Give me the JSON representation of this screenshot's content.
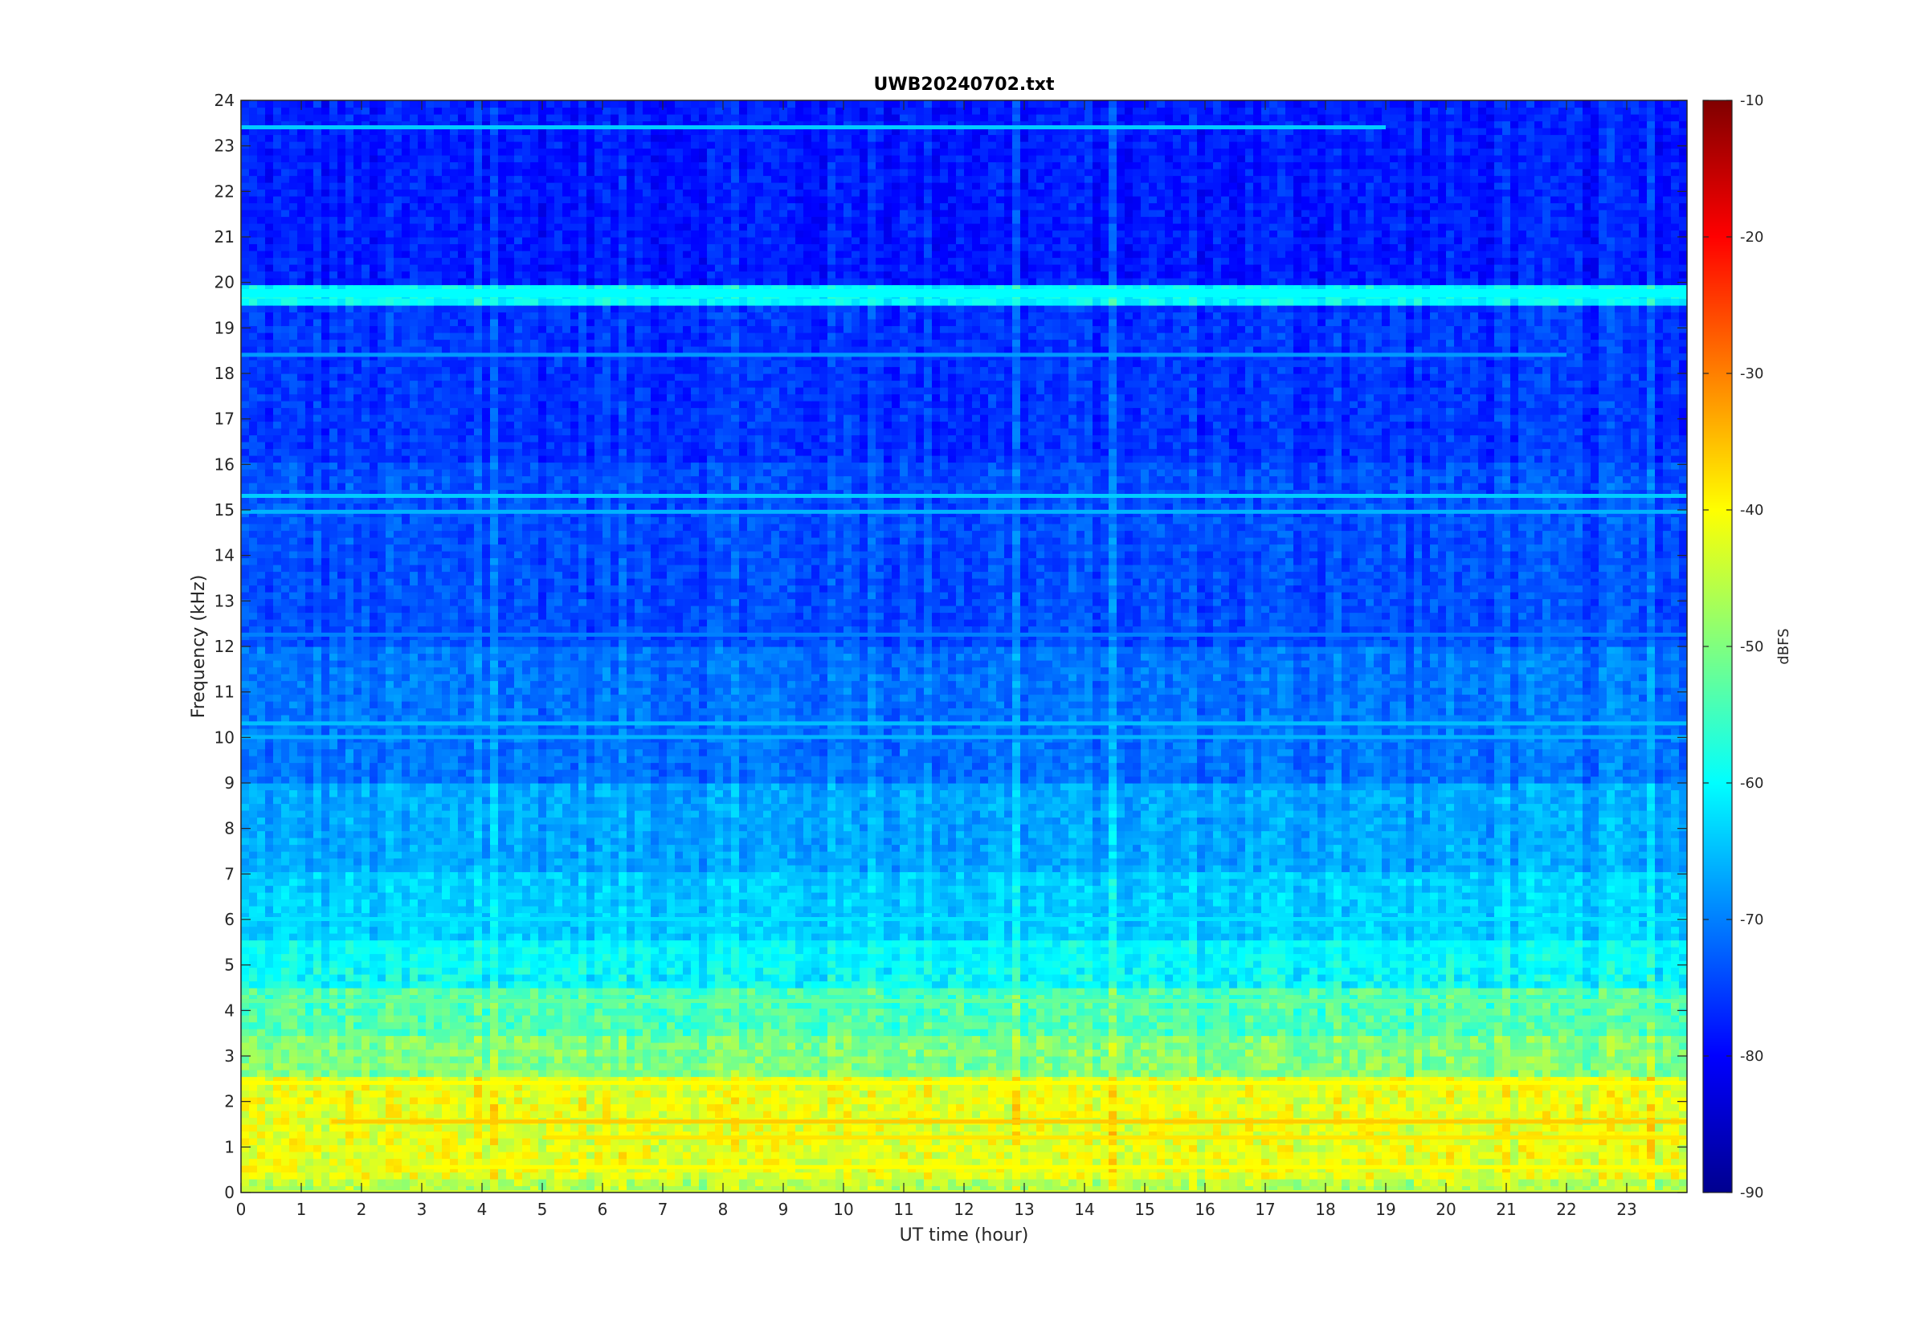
{
  "chart_data": {
    "type": "heatmap",
    "title": "UWB20240702.txt",
    "xlabel": "UT time (hour)",
    "ylabel": "Frequency (kHz)",
    "xlim": [
      0,
      24
    ],
    "ylim": [
      0,
      24
    ],
    "x_ticks": [
      "0",
      "1",
      "2",
      "3",
      "4",
      "5",
      "6",
      "7",
      "8",
      "9",
      "10",
      "11",
      "12",
      "13",
      "14",
      "15",
      "16",
      "17",
      "18",
      "19",
      "20",
      "21",
      "22",
      "23"
    ],
    "y_ticks": [
      "0",
      "1",
      "2",
      "3",
      "4",
      "5",
      "6",
      "7",
      "8",
      "9",
      "10",
      "11",
      "12",
      "13",
      "14",
      "15",
      "16",
      "17",
      "18",
      "19",
      "20",
      "21",
      "22",
      "23",
      "24"
    ],
    "colormap": "jet",
    "colorbar": {
      "label": "dBFS",
      "clim": [
        -90,
        -10
      ],
      "ticks": [
        "-10",
        "-20",
        "-30",
        "-40",
        "-50",
        "-60",
        "-70",
        "-80",
        "-90"
      ]
    },
    "level_profile_dBFS": [
      {
        "freq_khz": [
          0.0,
          0.3
        ],
        "level": -46
      },
      {
        "freq_khz": [
          0.3,
          2.5
        ],
        "level": -42
      },
      {
        "freq_khz": [
          2.5,
          3.5
        ],
        "level": -50
      },
      {
        "freq_khz": [
          3.5,
          4.5
        ],
        "level": -54
      },
      {
        "freq_khz": [
          4.5,
          5.5
        ],
        "level": -60
      },
      {
        "freq_khz": [
          5.5,
          7.0
        ],
        "level": -64
      },
      {
        "freq_khz": [
          7.0,
          9.0
        ],
        "level": -67
      },
      {
        "freq_khz": [
          9.0,
          12.0
        ],
        "level": -71
      },
      {
        "freq_khz": [
          12.0,
          16.0
        ],
        "level": -74
      },
      {
        "freq_khz": [
          16.0,
          19.5
        ],
        "level": -76
      },
      {
        "freq_khz": [
          19.5,
          20.0
        ],
        "level": -60
      },
      {
        "freq_khz": [
          20.0,
          24.0
        ],
        "level": -78
      }
    ],
    "persistent_lines": [
      {
        "freq_khz": 19.8,
        "level": -60,
        "from_hour": 0,
        "to_hour": 24
      },
      {
        "freq_khz": 23.4,
        "level": -64,
        "from_hour": 0,
        "to_hour": 19
      },
      {
        "freq_khz": 15.3,
        "level": -64,
        "from_hour": 0,
        "to_hour": 24
      },
      {
        "freq_khz": 14.95,
        "level": -66,
        "from_hour": 0,
        "to_hour": 24
      },
      {
        "freq_khz": 18.4,
        "level": -68,
        "from_hour": 0,
        "to_hour": 22
      },
      {
        "freq_khz": 12.25,
        "level": -70,
        "from_hour": 0,
        "to_hour": 24
      },
      {
        "freq_khz": 10.3,
        "level": -65,
        "from_hour": 0,
        "to_hour": 24
      },
      {
        "freq_khz": 10.0,
        "level": -66,
        "from_hour": 0,
        "to_hour": 24
      },
      {
        "freq_khz": 6.0,
        "level": -62,
        "from_hour": 0,
        "to_hour": 24
      },
      {
        "freq_khz": 4.2,
        "level": -52,
        "from_hour": 0,
        "to_hour": 24
      },
      {
        "freq_khz": 2.4,
        "level": -40,
        "from_hour": 0,
        "to_hour": 24
      },
      {
        "freq_khz": 1.55,
        "level": -36,
        "from_hour": 1.5,
        "to_hour": 24
      },
      {
        "freq_khz": 1.2,
        "level": -38,
        "from_hour": 5,
        "to_hour": 24
      },
      {
        "freq_khz": 0.55,
        "level": -40,
        "from_hour": 3,
        "to_hour": 24
      },
      {
        "freq_khz": 0.0,
        "level": -44,
        "from_hour": 0,
        "to_hour": 24
      }
    ]
  }
}
